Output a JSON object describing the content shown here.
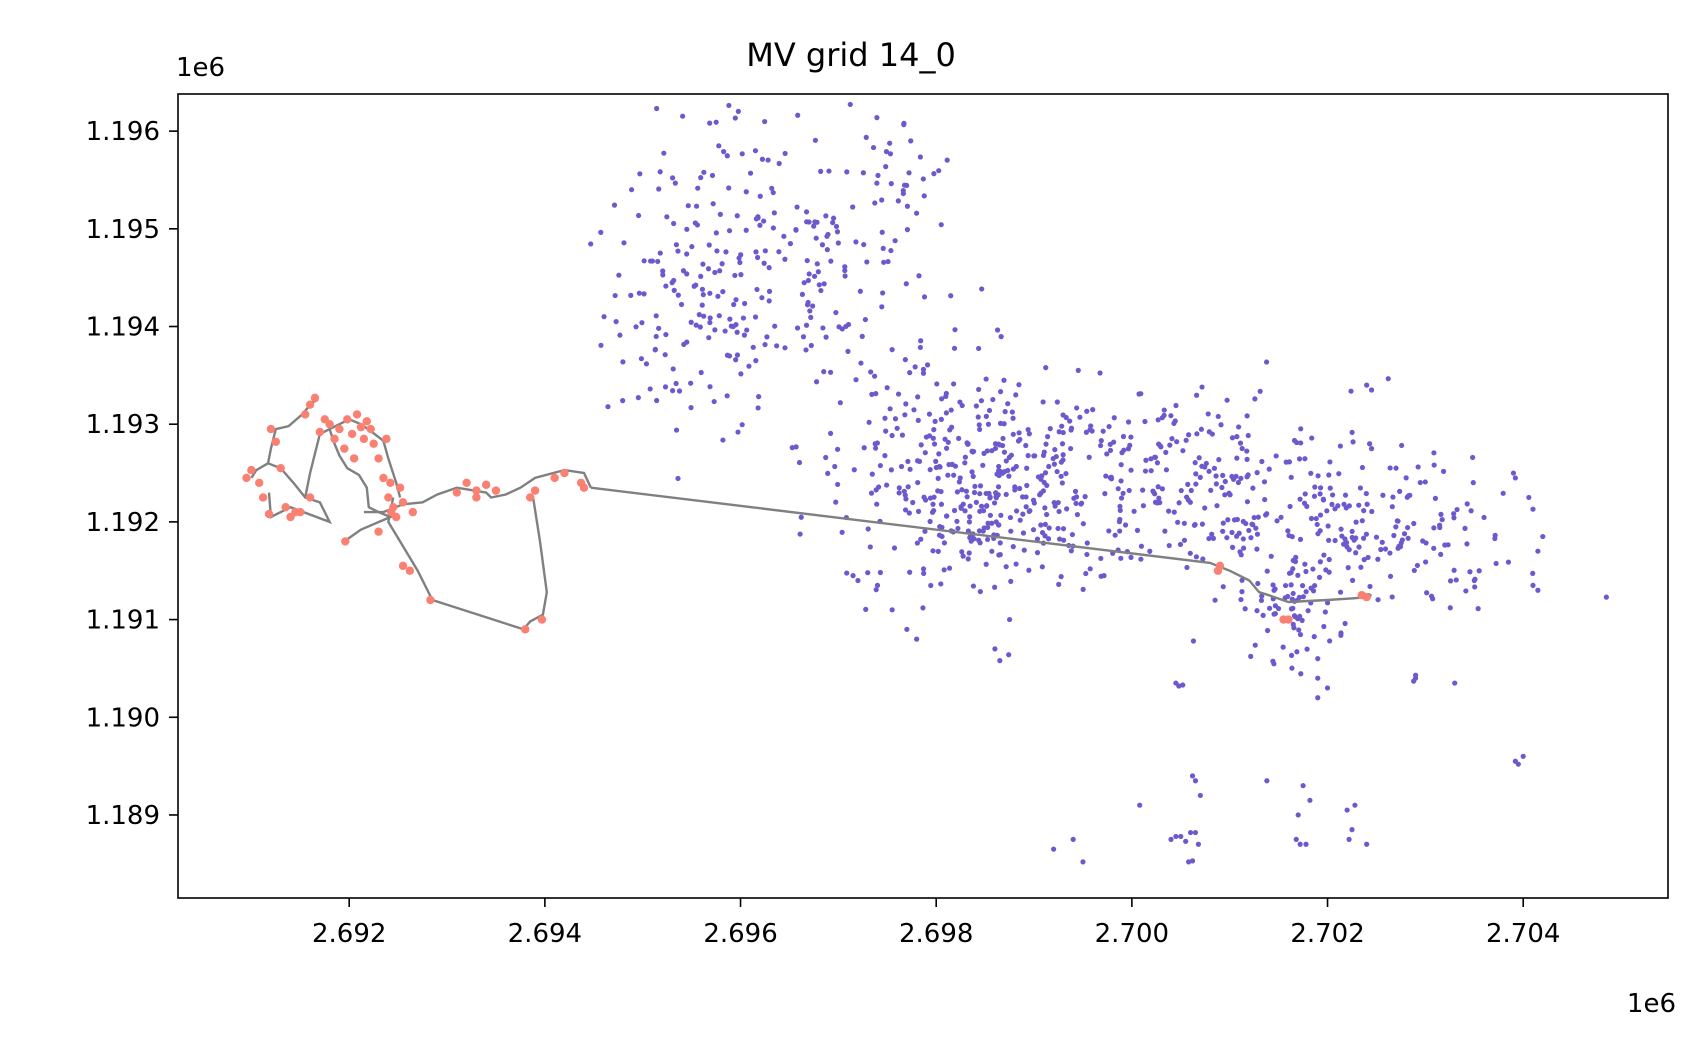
{
  "chart_data": {
    "type": "scatter",
    "title": "MV grid 14_0",
    "xlabel": "",
    "ylabel": "",
    "x_offset_label": "1e6",
    "y_offset_label": "1e6",
    "xlim": [
      2.69025,
      2.70548
    ],
    "ylim": [
      1.18815,
      1.19638
    ],
    "x_ticks": [
      2.692,
      2.694,
      2.696,
      2.698,
      2.7,
      2.702,
      2.704
    ],
    "x_tick_labels": [
      "2.692",
      "2.694",
      "2.696",
      "2.698",
      "2.700",
      "2.702",
      "2.704"
    ],
    "y_ticks": [
      1.189,
      1.19,
      1.191,
      1.192,
      1.193,
      1.194,
      1.195,
      1.196
    ],
    "y_tick_labels": [
      "1.189",
      "1.190",
      "1.191",
      "1.192",
      "1.193",
      "1.194",
      "1.195",
      "1.196"
    ],
    "grid": false,
    "colors": {
      "loads": "#6a5acd",
      "mv_nodes": "#fa8072",
      "lines": "#808080"
    },
    "line_path": [
      [
        2.69447,
        1.19235
      ],
      [
        2.7008,
        1.19158
      ],
      [
        2.701,
        1.1915
      ],
      [
        2.7012,
        1.1914
      ],
      [
        2.7013,
        1.19128
      ],
      [
        2.7014,
        1.19125
      ],
      [
        2.7016,
        1.19118
      ],
      [
        2.702,
        1.1912
      ],
      [
        2.7023,
        1.19122
      ],
      [
        2.70245,
        1.19125
      ]
    ],
    "feeder_path": [
      [
        2.69447,
        1.19235
      ],
      [
        2.6944,
        1.1925
      ],
      [
        2.6942,
        1.19253
      ],
      [
        2.6939,
        1.19245
      ],
      [
        2.69375,
        1.19235
      ],
      [
        2.6936,
        1.19228
      ],
      [
        2.69345,
        1.19225
      ],
      [
        2.6934,
        1.1923
      ],
      [
        2.69328,
        1.19232
      ],
      [
        2.6931,
        1.19235
      ],
      [
        2.6929,
        1.19228
      ],
      [
        2.69275,
        1.1922
      ],
      [
        2.69255,
        1.19218
      ],
      [
        2.69235,
        1.1921
      ],
      [
        2.69215,
        1.1921
      ]
    ],
    "south_loop": [
      [
        2.69388,
        1.19225
      ],
      [
        2.69395,
        1.1918
      ],
      [
        2.69402,
        1.19128
      ],
      [
        2.69398,
        1.19105
      ],
      [
        2.69385,
        1.19098
      ],
      [
        2.69378,
        1.1909
      ],
      [
        2.69285,
        1.1912
      ],
      [
        2.6927,
        1.1915
      ],
      [
        2.69255,
        1.19175
      ],
      [
        2.6924,
        1.192
      ],
      [
        2.69245,
        1.19225
      ]
    ],
    "loop_paths": [
      [
        [
          2.691,
          1.19245
        ],
        [
          2.69105,
          1.19253
        ],
        [
          2.69117,
          1.1926
        ],
        [
          2.6913,
          1.19255
        ],
        [
          2.69143,
          1.1924
        ],
        [
          2.69155,
          1.19225
        ],
        [
          2.6917,
          1.1922
        ],
        [
          2.6918,
          1.192
        ],
        [
          2.6914,
          1.19215
        ],
        [
          2.6912,
          1.19205
        ],
        [
          2.69118,
          1.1923
        ]
      ],
      [
        [
          2.69117,
          1.1926
        ],
        [
          2.6912,
          1.19275
        ],
        [
          2.69125,
          1.19295
        ],
        [
          2.69138,
          1.19298
        ],
        [
          2.69152,
          1.1931
        ],
        [
          2.69162,
          1.19322
        ],
        [
          2.69168,
          1.19325
        ]
      ],
      [
        [
          2.69155,
          1.19225
        ],
        [
          2.6916,
          1.1925
        ],
        [
          2.6917,
          1.1929
        ],
        [
          2.6918,
          1.19295
        ],
        [
          2.6919,
          1.193
        ],
        [
          2.692,
          1.19305
        ],
        [
          2.69212,
          1.193
        ],
        [
          2.69222,
          1.19293
        ],
        [
          2.69235,
          1.19283
        ],
        [
          2.6924,
          1.19265
        ],
        [
          2.69248,
          1.1924
        ],
        [
          2.69252,
          1.19225
        ]
      ],
      [
        [
          2.6918,
          1.19295
        ],
        [
          2.69185,
          1.1928
        ],
        [
          2.6919,
          1.19268
        ],
        [
          2.69198,
          1.19255
        ],
        [
          2.6921,
          1.19248
        ],
        [
          2.69218,
          1.19235
        ],
        [
          2.6922,
          1.19215
        ],
        [
          2.6923,
          1.1921
        ],
        [
          2.69242,
          1.19205
        ],
        [
          2.69212,
          1.19192
        ],
        [
          2.69195,
          1.1918
        ]
      ]
    ],
    "mv_nodes": [
      [
        2.69095,
        1.19245
      ],
      [
        2.691,
        1.19253
      ],
      [
        2.69108,
        1.1924
      ],
      [
        2.69112,
        1.19225
      ],
      [
        2.69118,
        1.19208
      ],
      [
        2.6912,
        1.19295
      ],
      [
        2.69125,
        1.19282
      ],
      [
        2.6913,
        1.19255
      ],
      [
        2.69135,
        1.19215
      ],
      [
        2.6914,
        1.19205
      ],
      [
        2.69145,
        1.1921
      ],
      [
        2.6915,
        1.1921
      ],
      [
        2.69155,
        1.1931
      ],
      [
        2.6916,
        1.1932
      ],
      [
        2.69165,
        1.19327
      ],
      [
        2.6916,
        1.19225
      ],
      [
        2.6917,
        1.19292
      ],
      [
        2.69175,
        1.19305
      ],
      [
        2.6918,
        1.193
      ],
      [
        2.69185,
        1.19285
      ],
      [
        2.6919,
        1.19295
      ],
      [
        2.69195,
        1.19275
      ],
      [
        2.69198,
        1.19305
      ],
      [
        2.69203,
        1.1929
      ],
      [
        2.69205,
        1.19265
      ],
      [
        2.69208,
        1.1931
      ],
      [
        2.69212,
        1.19297
      ],
      [
        2.69215,
        1.19285
      ],
      [
        2.69218,
        1.19303
      ],
      [
        2.69222,
        1.19295
      ],
      [
        2.69225,
        1.1928
      ],
      [
        2.6923,
        1.19265
      ],
      [
        2.69235,
        1.19245
      ],
      [
        2.69238,
        1.19285
      ],
      [
        2.6924,
        1.19225
      ],
      [
        2.69242,
        1.1924
      ],
      [
        2.69245,
        1.19215
      ],
      [
        2.69248,
        1.19205
      ],
      [
        2.69252,
        1.19235
      ],
      [
        2.69255,
        1.1922
      ],
      [
        2.69196,
        1.1918
      ],
      [
        2.6923,
        1.1919
      ],
      [
        2.69255,
        1.19155
      ],
      [
        2.69262,
        1.1915
      ],
      [
        2.69283,
        1.1912
      ],
      [
        2.69243,
        1.1921
      ],
      [
        2.69265,
        1.1921
      ],
      [
        2.6931,
        1.1923
      ],
      [
        2.6932,
        1.1924
      ],
      [
        2.6933,
        1.19232
      ],
      [
        2.6934,
        1.19238
      ],
      [
        2.6935,
        1.19232
      ],
      [
        2.6933,
        1.19225
      ],
      [
        2.69385,
        1.19225
      ],
      [
        2.6939,
        1.19232
      ],
      [
        2.6941,
        1.19245
      ],
      [
        2.6942,
        1.1925
      ],
      [
        2.69437,
        1.1924
      ],
      [
        2.6944,
        1.19235
      ],
      [
        2.6938,
        1.1909
      ],
      [
        2.69397,
        1.191
      ],
      [
        2.70088,
        1.1915
      ],
      [
        2.7009,
        1.19155
      ],
      [
        2.70155,
        1.191
      ],
      [
        2.7016,
        1.191
      ],
      [
        2.70235,
        1.19125
      ],
      [
        2.7024,
        1.19123
      ]
    ],
    "load_clusters": [
      {
        "cx": 2.6955,
        "cy": 1.19415,
        "sx": 0.00045,
        "sy": 0.00065,
        "n": 130
      },
      {
        "cx": 2.6968,
        "cy": 1.19455,
        "sx": 0.0006,
        "sy": 0.0006,
        "n": 110
      },
      {
        "cx": 2.698,
        "cy": 1.1928,
        "sx": 0.0007,
        "sy": 0.0005,
        "n": 150
      },
      {
        "cx": 2.6992,
        "cy": 1.19245,
        "sx": 0.0008,
        "sy": 0.00045,
        "n": 180
      },
      {
        "cx": 2.7008,
        "cy": 1.19235,
        "sx": 0.0009,
        "sy": 0.00055,
        "n": 200
      },
      {
        "cx": 2.7025,
        "cy": 1.19185,
        "sx": 0.0007,
        "sy": 0.0004,
        "n": 150
      },
      {
        "cx": 2.7016,
        "cy": 1.1911,
        "sx": 0.00025,
        "sy": 0.00025,
        "n": 70
      },
      {
        "cx": 2.6976,
        "cy": 1.1956,
        "sx": 0.0003,
        "sy": 0.0003,
        "n": 30
      },
      {
        "cx": 2.696,
        "cy": 1.1956,
        "sx": 0.0005,
        "sy": 0.0004,
        "n": 40
      },
      {
        "cx": 2.6985,
        "cy": 1.192,
        "sx": 0.0005,
        "sy": 0.0003,
        "n": 120
      }
    ],
    "load_points_extra": [
      [
        2.6978,
        1.1908
      ],
      [
        2.69715,
        1.19145
      ],
      [
        2.6974,
        1.19135
      ],
      [
        2.69755,
        1.1911
      ],
      [
        2.6977,
        1.1909
      ],
      [
        2.6973,
        1.19148
      ],
      [
        2.6972,
        1.1914
      ],
      [
        2.69875,
        1.191
      ],
      [
        2.6986,
        1.1907
      ],
      [
        2.69865,
        1.19058
      ],
      [
        2.70045,
        1.19035
      ],
      [
        2.70048,
        1.19032
      ],
      [
        2.70052,
        1.19033
      ],
      [
        2.70062,
        1.1894
      ],
      [
        2.70065,
        1.18935
      ],
      [
        2.7007,
        1.1892
      ],
      [
        2.7006,
        1.18882
      ],
      [
        2.70055,
        1.18873
      ],
      [
        2.7005,
        1.18878
      ],
      [
        2.70065,
        1.18882
      ],
      [
        2.70068,
        1.1887
      ],
      [
        2.70058,
        1.18852
      ],
      [
        2.70062,
        1.18853
      ],
      [
        2.70045,
        1.18878
      ],
      [
        2.7004,
        1.18875
      ],
      [
        2.70008,
        1.1891
      ],
      [
        2.6994,
        1.18875
      ],
      [
        2.6995,
        1.18852
      ],
      [
        2.6992,
        1.18865
      ],
      [
        2.70138,
        1.18935
      ],
      [
        2.70175,
        1.1893
      ],
      [
        2.70182,
        1.18915
      ],
      [
        2.7017,
        1.189
      ],
      [
        2.70168,
        1.18875
      ],
      [
        2.70172,
        1.1887
      ],
      [
        2.70178,
        1.1887
      ],
      [
        2.7022,
        1.18905
      ],
      [
        2.70225,
        1.18885
      ],
      [
        2.70222,
        1.18875
      ],
      [
        2.70228,
        1.1891
      ],
      [
        2.7024,
        1.1887
      ],
      [
        2.7029,
        1.19043
      ],
      [
        2.7029,
        1.1904
      ],
      [
        2.70288,
        1.19037
      ],
      [
        2.7033,
        1.19035
      ],
      [
        2.70392,
        1.18955
      ],
      [
        2.70395,
        1.18952
      ],
      [
        2.704,
        1.1896
      ],
      [
        2.70485,
        1.19123
      ],
      [
        2.7041,
        1.19213
      ],
      [
        2.7042,
        1.19185
      ],
      [
        2.70415,
        1.1917
      ],
      [
        2.7039,
        1.1925
      ],
      [
        2.70392,
        1.19245
      ],
      [
        2.70355,
        1.1915
      ],
      [
        2.7035,
        1.1914
      ],
      [
        2.7041,
        1.19135
      ],
      [
        2.70415,
        1.1913
      ],
      [
        2.7019,
        1.1906
      ],
      [
        2.7019,
        1.1904
      ],
      [
        2.7019,
        1.1902
      ],
      [
        2.702,
        1.1903
      ],
      [
        2.7024,
        1.1934
      ],
      [
        2.70245,
        1.19335
      ],
      [
        2.70243,
        1.1928
      ],
      [
        2.70245,
        1.19275
      ],
      [
        2.7027,
        1.19255
      ]
    ]
  }
}
